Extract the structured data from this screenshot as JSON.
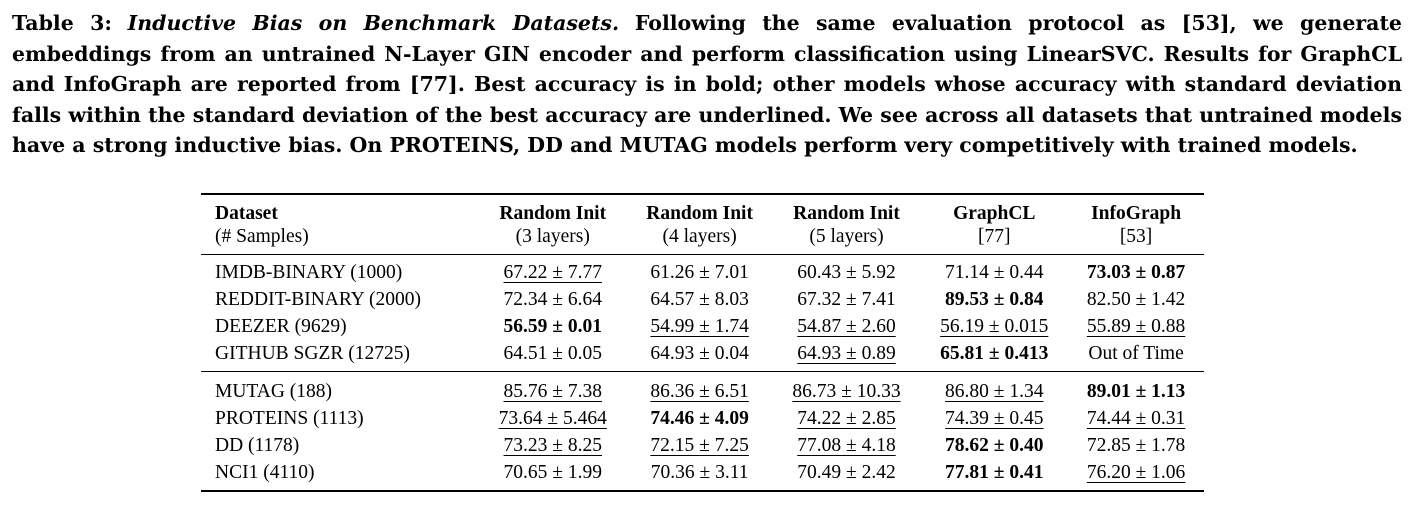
{
  "caption": {
    "label": "Table 3:",
    "title": "Inductive Bias on Benchmark Datasets.",
    "body": "Following the same evaluation protocol as [53], we generate embeddings from an untrained N-Layer GIN encoder and perform classification using LinearSVC. Results for GraphCL and InfoGraph are reported from [77]. Best accuracy is in bold; other models whose accuracy with standard deviation falls within the standard deviation of the best accuracy are underlined. We see across all datasets that untrained models have a strong inductive bias. On PROTEINS, DD and MUTAG models perform very competitively with trained models."
  },
  "table": {
    "headers": [
      {
        "top": "Dataset",
        "sub": "(# Samples)"
      },
      {
        "top": "Random Init",
        "sub": "(3 layers)"
      },
      {
        "top": "Random Init",
        "sub": "(4 layers)"
      },
      {
        "top": "Random Init",
        "sub": "(5 layers)"
      },
      {
        "top": "GraphCL",
        "sub": "[77]"
      },
      {
        "top": "InfoGraph",
        "sub": "[53]"
      }
    ],
    "group1": [
      {
        "dataset": "IMDB-BINARY (1000)",
        "cells": [
          {
            "text": "67.22 ± 7.77",
            "style": "underline"
          },
          {
            "text": "61.26 ± 7.01",
            "style": "plain"
          },
          {
            "text": "60.43 ± 5.92",
            "style": "plain"
          },
          {
            "text": "71.14 ± 0.44",
            "style": "plain"
          },
          {
            "text": "73.03 ± 0.87",
            "style": "bold"
          }
        ]
      },
      {
        "dataset": "REDDIT-BINARY (2000)",
        "cells": [
          {
            "text": "72.34 ± 6.64",
            "style": "plain"
          },
          {
            "text": "64.57 ± 8.03",
            "style": "plain"
          },
          {
            "text": "67.32 ± 7.41",
            "style": "plain"
          },
          {
            "text": "89.53 ± 0.84",
            "style": "bold"
          },
          {
            "text": "82.50 ± 1.42",
            "style": "plain"
          }
        ]
      },
      {
        "dataset": "DEEZER (9629)",
        "cells": [
          {
            "text": "56.59 ± 0.01",
            "style": "bold"
          },
          {
            "text": "54.99 ± 1.74",
            "style": "underline"
          },
          {
            "text": "54.87 ± 2.60",
            "style": "underline"
          },
          {
            "text": "56.19 ± 0.015",
            "style": "underline"
          },
          {
            "text": "55.89 ± 0.88",
            "style": "underline"
          }
        ]
      },
      {
        "dataset": "GITHUB SGZR (12725)",
        "cells": [
          {
            "text": "64.51 ± 0.05",
            "style": "plain"
          },
          {
            "text": "64.93 ± 0.04",
            "style": "plain"
          },
          {
            "text": "64.93 ± 0.89",
            "style": "underline"
          },
          {
            "text": "65.81 ± 0.413",
            "style": "bold"
          },
          {
            "text": "Out of Time",
            "style": "plain"
          }
        ]
      }
    ],
    "group2": [
      {
        "dataset": "MUTAG (188)",
        "cells": [
          {
            "text": "85.76 ± 7.38",
            "style": "underline"
          },
          {
            "text": "86.36 ± 6.51",
            "style": "underline"
          },
          {
            "text": "86.73 ± 10.33",
            "style": "underline"
          },
          {
            "text": "86.80 ± 1.34",
            "style": "underline"
          },
          {
            "text": "89.01 ± 1.13",
            "style": "bold"
          }
        ]
      },
      {
        "dataset": "PROTEINS (1113)",
        "cells": [
          {
            "text": "73.64 ± 5.464",
            "style": "underline"
          },
          {
            "text": "74.46 ± 4.09",
            "style": "bold"
          },
          {
            "text": "74.22 ± 2.85",
            "style": "underline"
          },
          {
            "text": "74.39 ± 0.45",
            "style": "underline"
          },
          {
            "text": "74.44 ± 0.31",
            "style": "underline"
          }
        ]
      },
      {
        "dataset": "DD (1178)",
        "cells": [
          {
            "text": "73.23 ± 8.25",
            "style": "underline"
          },
          {
            "text": "72.15 ± 7.25",
            "style": "underline"
          },
          {
            "text": "77.08 ± 4.18",
            "style": "underline"
          },
          {
            "text": "78.62 ± 0.40",
            "style": "bold"
          },
          {
            "text": "72.85 ± 1.78",
            "style": "plain"
          }
        ]
      },
      {
        "dataset": "NCI1 (4110)",
        "cells": [
          {
            "text": "70.65 ± 1.99",
            "style": "plain"
          },
          {
            "text": "70.36 ± 3.11",
            "style": "plain"
          },
          {
            "text": "70.49 ± 2.42",
            "style": "plain"
          },
          {
            "text": "77.81 ± 0.41",
            "style": "bold"
          },
          {
            "text": "76.20 ± 1.06",
            "style": "underline"
          }
        ]
      }
    ]
  }
}
